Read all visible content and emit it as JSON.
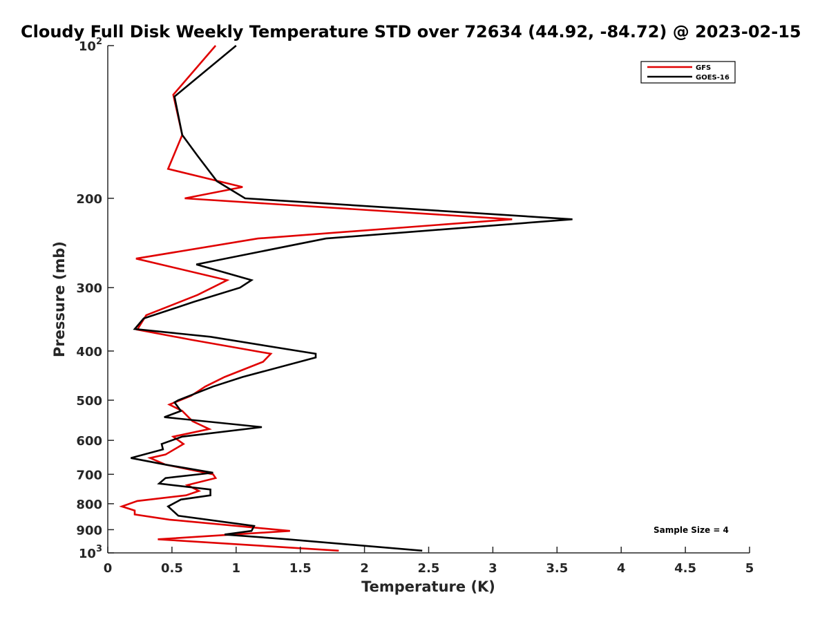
{
  "chart_data": {
    "type": "line",
    "title": "Cloudy Full Disk Weekly Temperature STD over 72634 (44.92, -84.72) @ 2023-02-15",
    "xlabel": "Temperature (K)",
    "ylabel": "Pressure (mb)",
    "xlim": [
      0,
      5
    ],
    "ylim": [
      100,
      1000
    ],
    "y_scale": "log",
    "y_reversed": true,
    "x_ticks": [
      "0",
      "0.5",
      "1",
      "1.5",
      "2",
      "2.5",
      "3",
      "3.5",
      "4",
      "4.5",
      "5"
    ],
    "y_ticks": [
      {
        "value": 100,
        "base": "10",
        "exp": "2"
      },
      {
        "value": 200,
        "label": "200"
      },
      {
        "value": 300,
        "label": "300"
      },
      {
        "value": 400,
        "label": "400"
      },
      {
        "value": 500,
        "label": "500"
      },
      {
        "value": 600,
        "label": "600"
      },
      {
        "value": 700,
        "label": "700"
      },
      {
        "value": 800,
        "label": "800"
      },
      {
        "value": 900,
        "label": "900"
      },
      {
        "value": 1000,
        "base": "10",
        "exp": "3"
      }
    ],
    "grid": false,
    "legend_position": "top-right",
    "annotation": "Sample Size = 4",
    "series": [
      {
        "name": "GFS",
        "color": "#e00000",
        "points": [
          [
            0.84,
            100
          ],
          [
            0.51,
            125
          ],
          [
            0.58,
            150
          ],
          [
            0.47,
            175
          ],
          [
            1.05,
            190
          ],
          [
            0.6,
            200
          ],
          [
            3.15,
            220
          ],
          [
            1.17,
            240
          ],
          [
            0.22,
            263
          ],
          [
            0.93,
            290
          ],
          [
            0.7,
            310
          ],
          [
            0.3,
            340
          ],
          [
            0.23,
            363
          ],
          [
            0.65,
            380
          ],
          [
            1.27,
            405
          ],
          [
            1.21,
            420
          ],
          [
            0.91,
            450
          ],
          [
            0.76,
            470
          ],
          [
            0.65,
            490
          ],
          [
            0.48,
            510
          ],
          [
            0.58,
            525
          ],
          [
            0.66,
            550
          ],
          [
            0.79,
            570
          ],
          [
            0.51,
            590
          ],
          [
            0.59,
            610
          ],
          [
            0.45,
            640
          ],
          [
            0.33,
            650
          ],
          [
            0.45,
            670
          ],
          [
            0.82,
            700
          ],
          [
            0.84,
            712
          ],
          [
            0.62,
            735
          ],
          [
            0.71,
            755
          ],
          [
            0.61,
            770
          ],
          [
            0.23,
            790
          ],
          [
            0.11,
            810
          ],
          [
            0.21,
            825
          ],
          [
            0.21,
            840
          ],
          [
            0.48,
            860
          ],
          [
            1.42,
            905
          ],
          [
            0.39,
            940
          ],
          [
            1.8,
            990
          ]
        ]
      },
      {
        "name": "GOES-16",
        "color": "#000000",
        "points": [
          [
            1.0,
            100
          ],
          [
            0.52,
            126
          ],
          [
            0.58,
            150
          ],
          [
            0.7,
            165
          ],
          [
            0.85,
            185
          ],
          [
            1.07,
            200
          ],
          [
            3.62,
            220
          ],
          [
            1.7,
            240
          ],
          [
            0.69,
            270
          ],
          [
            1.12,
            290
          ],
          [
            1.03,
            300
          ],
          [
            0.67,
            320
          ],
          [
            0.28,
            345
          ],
          [
            0.21,
            362
          ],
          [
            0.8,
            375
          ],
          [
            1.62,
            405
          ],
          [
            1.62,
            412
          ],
          [
            1.05,
            450
          ],
          [
            0.82,
            470
          ],
          [
            0.55,
            500
          ],
          [
            0.52,
            505
          ],
          [
            0.57,
            525
          ],
          [
            0.44,
            540
          ],
          [
            1.2,
            565
          ],
          [
            0.58,
            590
          ],
          [
            0.42,
            610
          ],
          [
            0.43,
            625
          ],
          [
            0.18,
            650
          ],
          [
            0.45,
            670
          ],
          [
            0.82,
            695
          ],
          [
            0.45,
            712
          ],
          [
            0.4,
            730
          ],
          [
            0.8,
            750
          ],
          [
            0.8,
            770
          ],
          [
            0.57,
            785
          ],
          [
            0.47,
            810
          ],
          [
            0.55,
            845
          ],
          [
            1.14,
            885
          ],
          [
            1.12,
            905
          ],
          [
            0.91,
            920
          ],
          [
            1.4,
            940
          ],
          [
            2.45,
            990
          ]
        ]
      }
    ]
  }
}
